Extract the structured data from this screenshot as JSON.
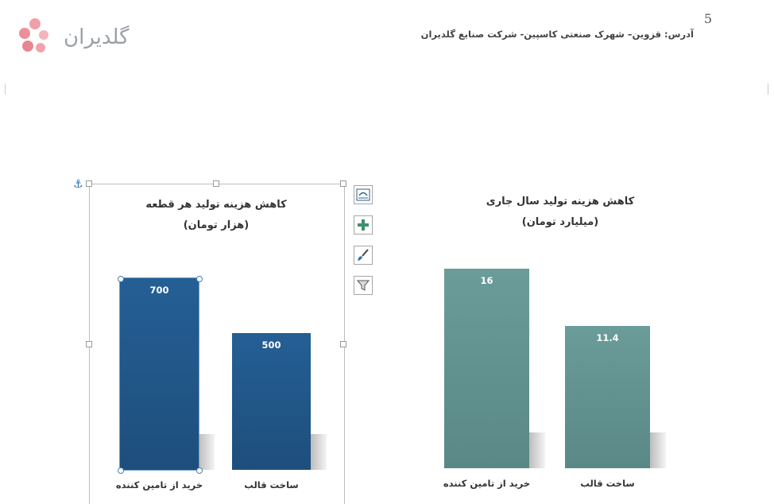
{
  "header": {
    "logo_text": "گلدیران",
    "page_number": "5",
    "address": "آدرس: قزوین– شهرک صنعتی کاسپین- شرکت صنایع گلدیران"
  },
  "colors": {
    "left_bars": "#225a8c",
    "right_bars": "#639694"
  },
  "icons": [
    "anchor-icon",
    "layout-options-icon",
    "chart-elements-plus-icon",
    "chart-styles-brush-icon",
    "chart-filter-icon"
  ],
  "chart_data": [
    {
      "type": "bar",
      "title": "کاهش هزینه تولید هر قطعه",
      "subtitle": "(هزار تومان)",
      "categories": [
        "خرید از تامین کننده",
        "ساخت قالب"
      ],
      "values": [
        700,
        500
      ],
      "data_labels": [
        "700",
        "500"
      ],
      "legend": "none",
      "grid": false
    },
    {
      "type": "bar",
      "title": "کاهش هزینه تولید سال جاری",
      "subtitle": "(میلیارد تومان)",
      "categories": [
        "خرید از تامین کننده",
        "ساخت قالب"
      ],
      "values": [
        16,
        11.4
      ],
      "data_labels": [
        "16",
        "11.4"
      ],
      "legend": "none",
      "grid": false
    }
  ]
}
